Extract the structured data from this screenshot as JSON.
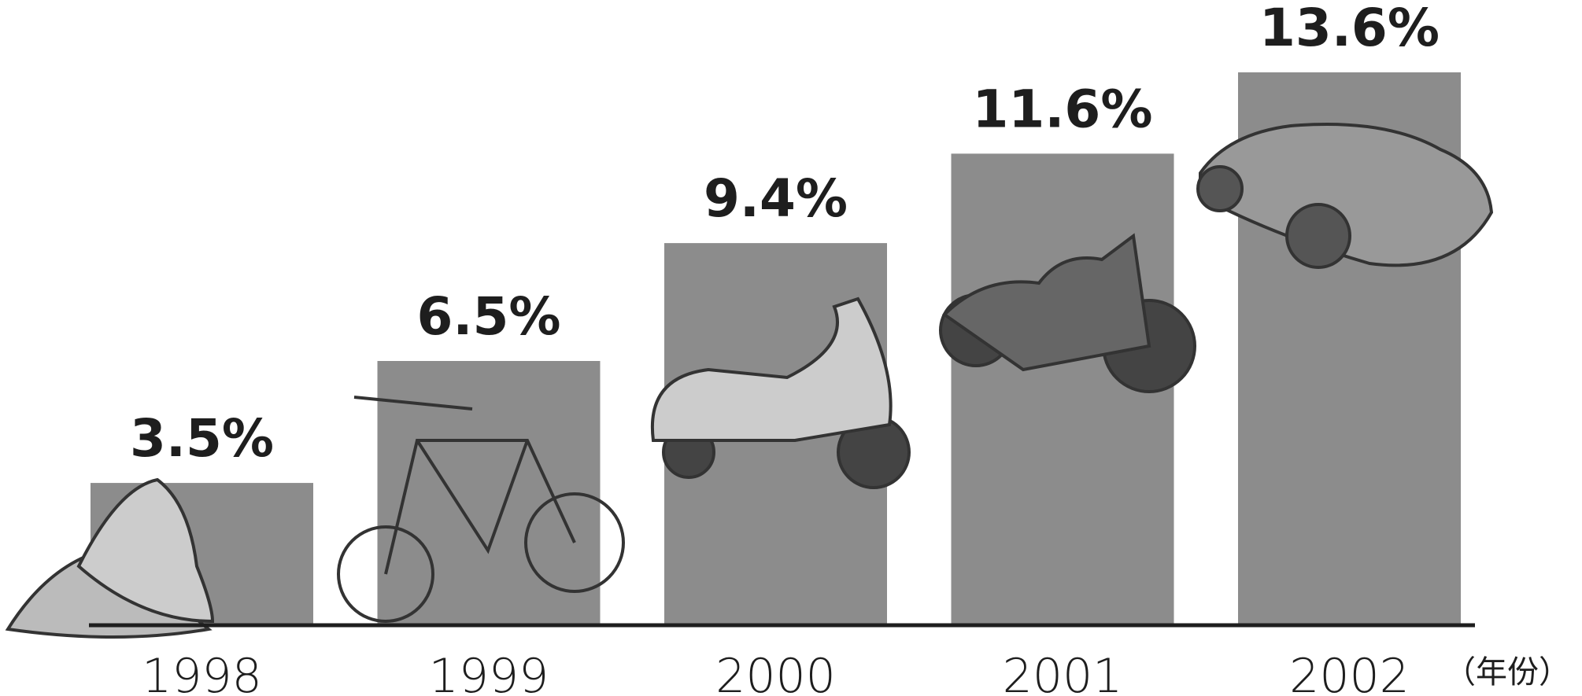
{
  "chart_data": {
    "type": "bar",
    "categories": [
      "1998",
      "1999",
      "2000",
      "2001",
      "2002"
    ],
    "values": [
      3.5,
      6.5,
      9.4,
      11.6,
      13.6
    ],
    "value_labels": [
      "3.5%",
      "6.5%",
      "9.4%",
      "11.6%",
      "13.6%"
    ],
    "x_label": "（年份）",
    "color": "#8c8c8c"
  }
}
